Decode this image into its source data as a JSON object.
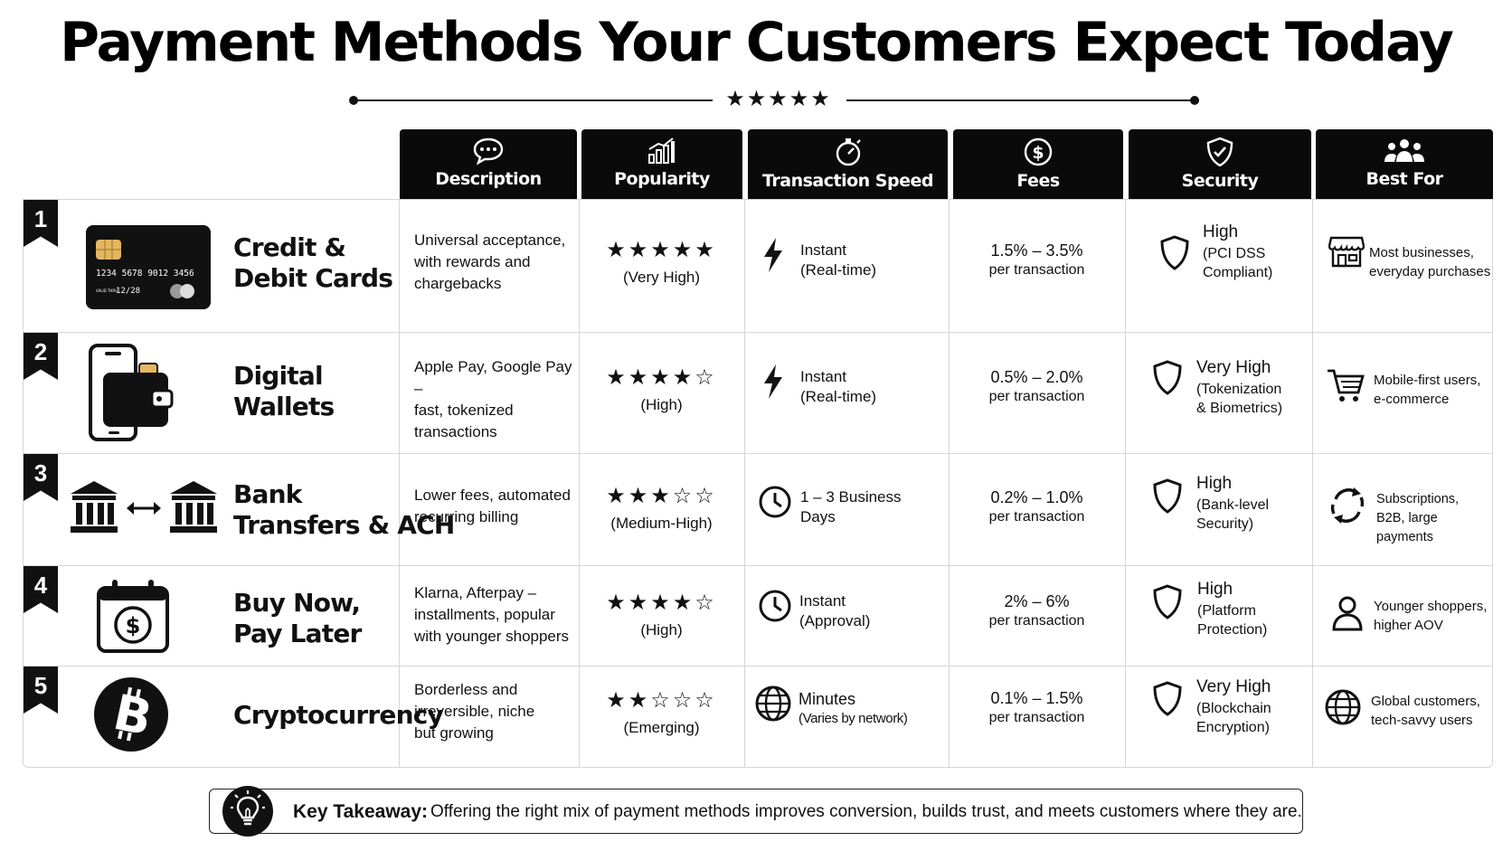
{
  "title": "Payment Methods Your Customers Expect Today",
  "divider_stars": "★★★★★",
  "columns": [
    {
      "label": "Description",
      "icon": "chat-bubble-icon"
    },
    {
      "label": "Popularity",
      "icon": "bar-chart-icon"
    },
    {
      "label": "Transaction Speed",
      "icon": "stopwatch-icon"
    },
    {
      "label": "Fees",
      "icon": "dollar-circle-icon"
    },
    {
      "label": "Security",
      "icon": "shield-check-icon"
    },
    {
      "label": "Best For",
      "icon": "people-group-icon"
    }
  ],
  "rows": [
    {
      "num": "1",
      "name": [
        "Credit &",
        "Debit Cards"
      ],
      "icon": "credit-card-icon",
      "card": {
        "number": "1234 5678 9012 3456",
        "valid": "VALID THRU",
        "expiry": "12/28"
      },
      "description": [
        "Universal acceptance,",
        "with rewards and",
        "chargebacks"
      ],
      "stars": "★★★★★",
      "rating": 5,
      "popularity": "(Very High)",
      "speed_icon": "lightning-icon",
      "speed": [
        "Instant",
        "(Real-time)"
      ],
      "fees": [
        "1.5% – 3.5%",
        "per transaction"
      ],
      "security": [
        "High",
        "(PCI DSS",
        "Compliant)"
      ],
      "best_icon": "storefront-icon",
      "best_for": [
        "Most businesses,",
        "everyday purchases"
      ]
    },
    {
      "num": "2",
      "name": [
        "Digital",
        "Wallets"
      ],
      "icon": "phone-wallet-icon",
      "description": [
        "Apple Pay, Google Pay –",
        "fast, tokenized",
        "transactions"
      ],
      "stars": "★★★★☆",
      "rating": 4,
      "popularity": "(High)",
      "speed_icon": "lightning-icon",
      "speed": [
        "Instant",
        "(Real-time)"
      ],
      "fees": [
        "0.5% – 2.0%",
        "per transaction"
      ],
      "security": [
        "Very High",
        "(Tokenization",
        "& Biometrics)"
      ],
      "best_icon": "shopping-cart-icon",
      "best_for": [
        "Mobile-first users,",
        "e-commerce"
      ]
    },
    {
      "num": "3",
      "name": [
        "Bank",
        "Transfers & ACH"
      ],
      "icon": "bank-transfer-icon",
      "description": [
        "Lower fees, automated",
        "recurring billing"
      ],
      "stars": "★★★☆☆",
      "rating": 3,
      "popularity": "(Medium-High)",
      "speed_icon": "clock-icon",
      "speed": [
        "1 – 3 Business",
        "Days"
      ],
      "fees": [
        "0.2% – 1.0%",
        "per transaction"
      ],
      "security": [
        "High",
        "(Bank-level",
        "Security)"
      ],
      "best_icon": "recurring-arrows-icon",
      "best_for": [
        "Subscriptions,",
        "B2B, large payments"
      ]
    },
    {
      "num": "4",
      "name": [
        "Buy Now,",
        "Pay Later"
      ],
      "icon": "calendar-dollar-icon",
      "description": [
        "Klarna, Afterpay –",
        "installments, popular",
        "with younger shoppers"
      ],
      "stars": "★★★★☆",
      "rating": 4,
      "popularity": "(High)",
      "speed_icon": "clock-icon",
      "speed": [
        "Instant",
        "(Approval)"
      ],
      "fees": [
        "2% – 6%",
        "per transaction"
      ],
      "security": [
        "High",
        "(Platform",
        "Protection)"
      ],
      "best_icon": "person-icon",
      "best_for": [
        "Younger shoppers,",
        "higher AOV"
      ]
    },
    {
      "num": "5",
      "name": [
        "Cryptocurrency"
      ],
      "icon": "bitcoin-icon",
      "description": [
        "Borderless and",
        "irreversible, niche",
        "but growing"
      ],
      "stars": "★★☆☆☆",
      "rating": 2,
      "popularity": "(Emerging)",
      "speed_icon": "globe-icon",
      "speed": [
        "Minutes",
        "(Varies by network)"
      ],
      "fees": [
        "0.1% – 1.5%",
        "per transaction"
      ],
      "security": [
        "Very High",
        "(Blockchain",
        "Encryption)"
      ],
      "best_icon": "globe-icon",
      "best_for": [
        "Global customers,",
        "tech-savvy users"
      ]
    }
  ],
  "takeaway": {
    "icon": "lightbulb-icon",
    "label": "Key Takeaway:",
    "text": "Offering the right mix of payment methods improves conversion, builds trust, and meets customers where they are."
  }
}
